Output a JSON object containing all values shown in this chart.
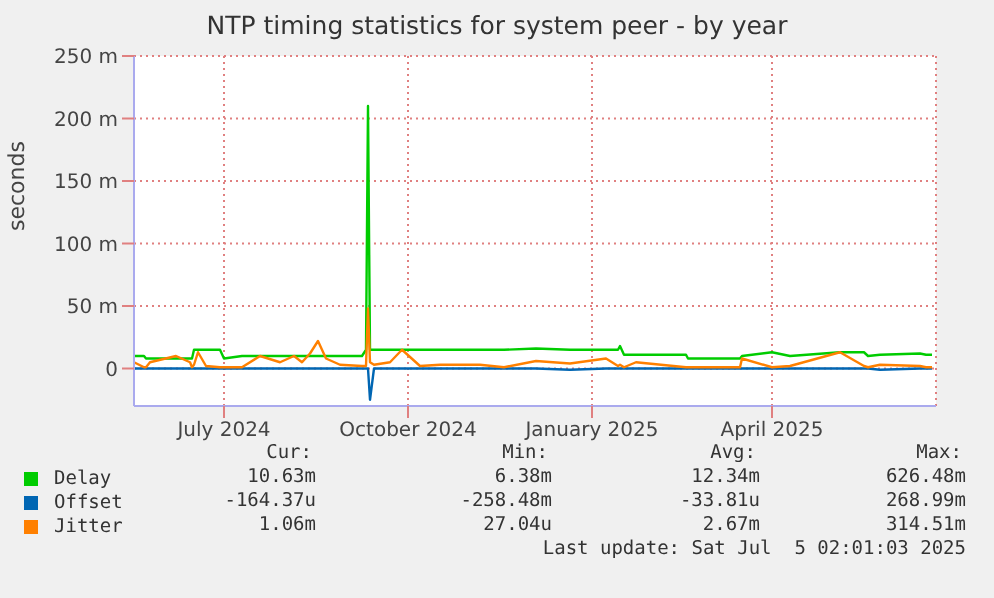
{
  "chart_data": {
    "type": "line",
    "title": "NTP timing statistics for system peer - by year",
    "ylabel": "seconds",
    "x": [
      "2024-06-01",
      "2024-06-06",
      "2024-06-07",
      "2024-06-09",
      "2024-06-22",
      "2024-06-29",
      "2024-06-30",
      "2024-07-01",
      "2024-07-03",
      "2024-07-07",
      "2024-07-14",
      "2024-07-16",
      "2024-07-25",
      "2024-08-03",
      "2024-08-13",
      "2024-08-20",
      "2024-08-24",
      "2024-08-28",
      "2024-09-01",
      "2024-09-05",
      "2024-09-12",
      "2024-09-23",
      "2024-09-25",
      "2024-09-26",
      "2024-09-27",
      "2024-09-29",
      "2024-10-07",
      "2024-10-13",
      "2024-10-22",
      "2024-11-01",
      "2024-11-21",
      "2024-12-03",
      "2024-12-19",
      "2025-01-05",
      "2025-01-23",
      "2025-01-29",
      "2025-01-30",
      "2025-02-01",
      "2025-02-07",
      "2025-03-04",
      "2025-03-05",
      "2025-03-31",
      "2025-04-01",
      "2025-04-16",
      "2025-04-25",
      "2025-05-20",
      "2025-06-01",
      "2025-06-03",
      "2025-06-09",
      "2025-06-29",
      "2025-07-02",
      "2025-07-05"
    ],
    "series": [
      {
        "name": "Delay",
        "color": "#00cc00",
        "values": [
          10,
          10,
          8,
          8,
          8,
          8,
          8,
          15,
          15,
          15,
          15,
          8,
          10,
          10,
          10,
          10,
          10,
          10,
          10,
          10,
          10,
          10,
          15,
          210,
          15,
          15,
          15,
          15,
          15,
          15,
          15,
          15,
          16,
          15,
          15,
          15,
          18,
          11,
          11,
          11,
          8,
          8,
          10,
          13,
          10,
          13,
          13,
          10,
          11,
          12,
          11,
          11
        ]
      },
      {
        "name": "Offset",
        "color": "#0066b3",
        "values": [
          0,
          0,
          0,
          0,
          0,
          0,
          0,
          0,
          0,
          0,
          0,
          0,
          0,
          0,
          0,
          0,
          0,
          0,
          0,
          0,
          0,
          0,
          0,
          0,
          -25,
          0,
          0,
          0,
          0,
          0,
          0,
          0,
          0,
          -1,
          0,
          0,
          0,
          0,
          0,
          0,
          0,
          0,
          0,
          0,
          0,
          0,
          0,
          0,
          -1,
          0,
          0,
          0
        ]
      },
      {
        "name": "Jitter",
        "color": "#ff8000",
        "values": [
          5,
          1,
          1,
          5,
          10,
          5,
          1,
          3,
          13,
          2,
          1,
          1,
          1,
          10,
          5,
          10,
          5,
          12,
          22,
          8,
          3,
          2,
          2,
          48,
          5,
          3,
          5,
          15,
          2,
          3,
          3,
          1,
          6,
          4,
          8,
          2,
          3,
          1,
          5,
          1,
          1,
          1,
          8,
          1,
          2,
          13,
          2,
          1,
          3,
          2,
          1,
          1
        ]
      }
    ],
    "xlim": [
      "2024-06-01",
      "2025-07-07"
    ],
    "xticks": [
      {
        "value": "2024-07-16",
        "label": "July 2024"
      },
      {
        "value": "2024-10-16",
        "label": "October 2024"
      },
      {
        "value": "2025-01-16",
        "label": "January 2025"
      },
      {
        "value": "2025-04-16",
        "label": "April 2025"
      }
    ],
    "ylim": [
      -30,
      250
    ],
    "yticks": [
      {
        "value": 0,
        "label": "0"
      },
      {
        "value": 50,
        "label": "50 m"
      },
      {
        "value": 100,
        "label": "100 m"
      },
      {
        "value": 150,
        "label": "150 m"
      },
      {
        "value": 200,
        "label": "200 m"
      },
      {
        "value": 250,
        "label": "250 m"
      }
    ],
    "grid": true,
    "legend": "bottom",
    "annotations": [
      "Cur:",
      "Min:",
      "Avg:",
      "Max:",
      "10.63m",
      "6.38m",
      "12.34m",
      "626.48m",
      "-164.37u",
      "-258.48m",
      "-33.81u",
      "268.99m",
      "1.06m",
      "27.04u",
      "2.67m",
      "314.51m",
      "Last update: Sat Jul  5 02:01:03 2025"
    ]
  }
}
